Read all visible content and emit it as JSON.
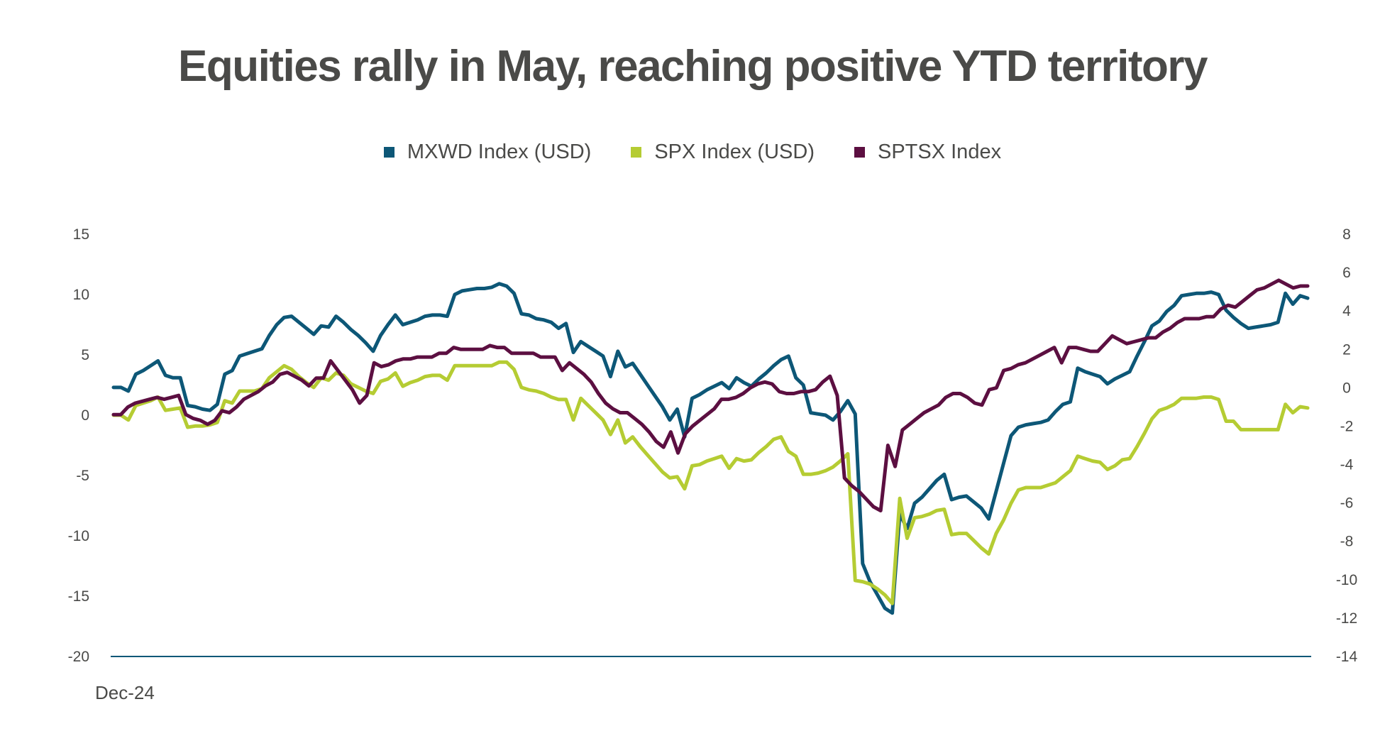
{
  "title": "Equities rally in May, reaching positive YTD territory",
  "chart_data": {
    "type": "line",
    "title": "Equities rally in May, reaching positive YTD territory",
    "xlabel": "",
    "x_tick_label": "Dec-24",
    "legend_position": "top",
    "grid": false,
    "y_left": {
      "ylim": [
        -20,
        15
      ],
      "ticks": [
        "15",
        "10",
        "5",
        "0",
        "-5",
        "-10",
        "-15",
        "-20"
      ]
    },
    "y_right": {
      "ylim": [
        -14,
        8
      ],
      "ticks": [
        "8",
        "6",
        "4",
        "2",
        "0",
        "-2",
        "-4",
        "-6",
        "-8",
        "-10",
        "-12",
        "-14"
      ]
    },
    "series": [
      {
        "name": "MXWD Index (USD)",
        "axis": "left",
        "color": "#0d5777",
        "values": [
          2.3,
          2.3,
          2,
          3.4,
          3.7,
          4.1,
          4.5,
          3.3,
          3.1,
          3.1,
          0.8,
          0.7,
          0.5,
          0.4,
          0.9,
          3.4,
          3.7,
          4.9,
          5.1,
          5.3,
          5.5,
          6.6,
          7.5,
          8.1,
          8.2,
          7.7,
          7.2,
          6.7,
          7.4,
          7.3,
          8.2,
          7.7,
          7.1,
          6.6,
          6,
          5.3,
          6.6,
          7.5,
          8.3,
          7.5,
          7.7,
          7.9,
          8.2,
          8.3,
          8.3,
          8.2,
          10,
          10.3,
          10.4,
          10.5,
          10.5,
          10.6,
          10.9,
          10.7,
          10.1,
          8.4,
          8.3,
          8,
          7.9,
          7.7,
          7.2,
          7.6,
          5.2,
          6.1,
          5.7,
          5.3,
          4.9,
          3.2,
          5.3,
          4,
          4.3,
          3.4,
          2.5,
          1.6,
          0.7,
          -0.4,
          0.5,
          -1.8,
          1.4,
          1.7,
          2.1,
          2.4,
          2.7,
          2.2,
          3.1,
          2.7,
          2.4,
          3,
          3.5,
          4.1,
          4.6,
          4.9,
          3.1,
          2.5,
          0.2,
          0.1,
          0,
          -0.4,
          0.3,
          1.2,
          0.1,
          -12.3,
          -13.8,
          -14.9,
          -16,
          -16.4,
          -8.2,
          -9.4,
          -7.3,
          -6.8,
          -6.1,
          -5.4,
          -4.9,
          -7,
          -6.8,
          -6.7,
          -7.2,
          -7.7,
          -8.6,
          -6.3,
          -4,
          -1.7,
          -1,
          -0.8,
          -0.7,
          -0.6,
          -0.4,
          0.3,
          0.9,
          1.1,
          3.9,
          3.6,
          3.4,
          3.2,
          2.6,
          3,
          3.3,
          3.6,
          4.9,
          6.1,
          7.4,
          7.8,
          8.6,
          9.1,
          9.9,
          10,
          10.1,
          10.1,
          10.2,
          10,
          8.7,
          8.1,
          7.6,
          7.2,
          7.3,
          7.4,
          7.5,
          7.7,
          10.1,
          9.2,
          9.9,
          9.7
        ]
      },
      {
        "name": "SPX Index (USD)",
        "axis": "left",
        "color": "#b5cc33",
        "values": [
          0,
          0,
          -0.4,
          0.8,
          1,
          1.2,
          1.5,
          0.4,
          0.5,
          0.6,
          -1,
          -0.9,
          -0.9,
          -0.8,
          -0.6,
          1.2,
          1,
          2,
          2,
          2,
          2.2,
          3.1,
          3.6,
          4.1,
          3.8,
          3.2,
          2.7,
          2.3,
          3.1,
          2.9,
          3.5,
          3.3,
          2.6,
          2.3,
          2,
          1.8,
          2.8,
          3,
          3.5,
          2.4,
          2.7,
          2.9,
          3.2,
          3.3,
          3.3,
          2.9,
          4.1,
          4.1,
          4.1,
          4.1,
          4.1,
          4.1,
          4.4,
          4.4,
          3.8,
          2.3,
          2.1,
          2,
          1.8,
          1.5,
          1.3,
          1.3,
          -0.4,
          1.4,
          0.8,
          0.2,
          -0.4,
          -1.6,
          -0.4,
          -2.3,
          -1.8,
          -2.6,
          -3.3,
          -4,
          -4.7,
          -5.2,
          -5.1,
          -6.1,
          -4.2,
          -4.1,
          -3.8,
          -3.6,
          -3.4,
          -4.4,
          -3.6,
          -3.8,
          -3.7,
          -3.1,
          -2.6,
          -2,
          -1.8,
          -3,
          -3.4,
          -4.9,
          -4.9,
          -4.8,
          -4.6,
          -4.3,
          -3.8,
          -3.2,
          -13.7,
          -13.8,
          -14,
          -14.4,
          -14.9,
          -15.6,
          -6.9,
          -10.2,
          -8.5,
          -8.4,
          -8.2,
          -7.9,
          -7.8,
          -9.9,
          -9.8,
          -9.8,
          -10.4,
          -11,
          -11.5,
          -9.8,
          -8.7,
          -7.3,
          -6.2,
          -6,
          -6,
          -6,
          -5.8,
          -5.6,
          -5.1,
          -4.6,
          -3.4,
          -3.6,
          -3.8,
          -3.9,
          -4.5,
          -4.2,
          -3.7,
          -3.6,
          -2.6,
          -1.5,
          -0.3,
          0.4,
          0.6,
          0.9,
          1.4,
          1.4,
          1.4,
          1.5,
          1.5,
          1.3,
          -0.5,
          -0.5,
          -1.2,
          -1.2,
          -1.2,
          -1.2,
          -1.2,
          -1.2,
          0.9,
          0.2,
          0.7,
          0.6
        ]
      },
      {
        "name": "SPTSX Index",
        "axis": "right",
        "color": "#5c0f41",
        "values": [
          -1.4,
          -1.4,
          -1,
          -0.8,
          -0.7,
          -0.6,
          -0.5,
          -0.6,
          -0.5,
          -0.4,
          -1.4,
          -1.6,
          -1.7,
          -1.9,
          -1.7,
          -1.2,
          -1.3,
          -1,
          -0.6,
          -0.4,
          -0.2,
          0.1,
          0.3,
          0.7,
          0.8,
          0.6,
          0.4,
          0.1,
          0.5,
          0.5,
          1.4,
          0.9,
          0.4,
          -0.1,
          -0.8,
          -0.4,
          1.3,
          1.1,
          1.2,
          1.4,
          1.5,
          1.5,
          1.6,
          1.6,
          1.6,
          1.8,
          1.8,
          2.1,
          2,
          2,
          2,
          2,
          2.2,
          2.1,
          2.1,
          1.8,
          1.8,
          1.8,
          1.8,
          1.6,
          1.6,
          1.6,
          0.9,
          1.3,
          1,
          0.7,
          0.3,
          -0.3,
          -0.8,
          -1.1,
          -1.3,
          -1.3,
          -1.6,
          -1.9,
          -2.3,
          -2.8,
          -3.1,
          -2.3,
          -3.4,
          -2.4,
          -2,
          -1.7,
          -1.4,
          -1.1,
          -0.6,
          -0.6,
          -0.5,
          -0.3,
          0,
          0.2,
          0.3,
          0.2,
          -0.2,
          -0.3,
          -0.3,
          -0.2,
          -0.2,
          -0.1,
          0.3,
          0.6,
          -0.4,
          -4.7,
          -5.1,
          -5.4,
          -5.8,
          -6.2,
          -6.4,
          -3,
          -4.1,
          -2.2,
          -1.9,
          -1.6,
          -1.3,
          -1.1,
          -0.9,
          -0.5,
          -0.3,
          -0.3,
          -0.5,
          -0.8,
          -0.9,
          -0.1,
          0,
          0.9,
          1,
          1.2,
          1.3,
          1.5,
          1.7,
          1.9,
          2.1,
          1.3,
          2.1,
          2.1,
          2,
          1.9,
          1.9,
          2.3,
          2.7,
          2.5,
          2.3,
          2.4,
          2.5,
          2.6,
          2.6,
          2.9,
          3.1,
          3.4,
          3.6,
          3.6,
          3.6,
          3.7,
          3.7,
          4.1,
          4.3,
          4.2,
          4.5,
          4.8,
          5.1,
          5.2,
          5.4,
          5.6,
          5.4,
          5.2,
          5.3,
          5.3
        ]
      }
    ]
  }
}
